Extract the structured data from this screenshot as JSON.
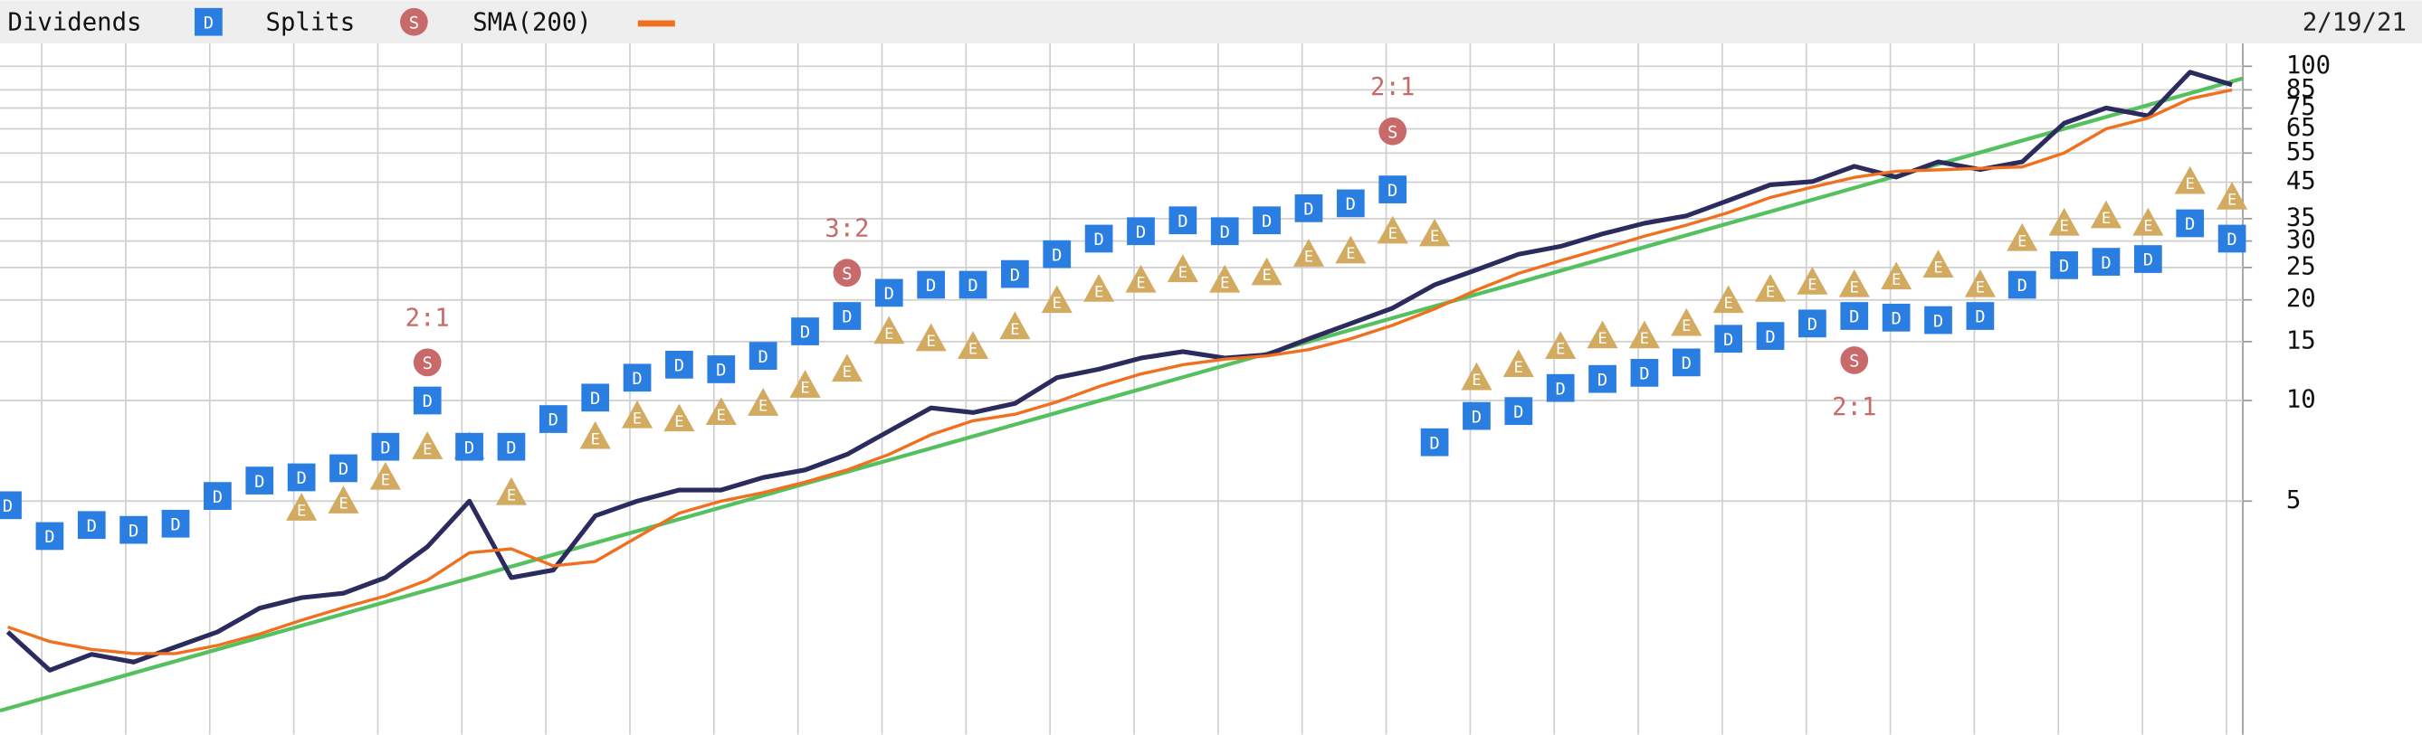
{
  "chart_data": {
    "type": "line",
    "date": "2/19/21",
    "log": true,
    "grid": true,
    "ylim": [
      1,
      117
    ],
    "yticks": [
      100,
      85,
      75,
      65,
      55,
      45,
      35,
      30,
      25,
      20,
      15,
      10,
      5
    ],
    "price": {
      "color": "#2b2b5e",
      "values": [
        2.03,
        1.56,
        1.74,
        1.65,
        1.83,
        2.03,
        2.39,
        2.57,
        2.65,
        2.95,
        3.65,
        5.0,
        2.95,
        3.11,
        4.52,
        5.0,
        5.4,
        5.4,
        5.88,
        6.2,
        6.9,
        8.1,
        9.5,
        9.2,
        9.8,
        11.7,
        12.4,
        13.4,
        14.0,
        13.4,
        13.7,
        15.3,
        17.0,
        18.9,
        22.2,
        24.6,
        27.4,
        28.9,
        31.5,
        33.9,
        35.7,
        39.7,
        44.2,
        45.2,
        50.2,
        46.6,
        51.8,
        49.1,
        51.8,
        67.5,
        75.0,
        71.1,
        96,
        88
      ]
    },
    "series": [
      {
        "name": "SMA(200)",
        "color": "#f07020",
        "values": [
          2.1,
          1.9,
          1.8,
          1.75,
          1.75,
          1.85,
          2.0,
          2.2,
          2.4,
          2.6,
          2.9,
          3.5,
          3.6,
          3.2,
          3.3,
          3.9,
          4.6,
          5.0,
          5.3,
          5.7,
          6.2,
          6.9,
          7.9,
          8.7,
          9.1,
          9.9,
          11.0,
          12.0,
          12.8,
          13.3,
          13.6,
          14.2,
          15.3,
          16.8,
          18.8,
          21.4,
          24.0,
          26.2,
          28.5,
          31.0,
          33.5,
          36.5,
          40.5,
          43.5,
          46.5,
          48.5,
          49.0,
          49.5,
          50.0,
          55.0,
          65.0,
          70.0,
          80.0,
          85.0
        ]
      }
    ],
    "dividends": {
      "name": "Dividends",
      "symbol": "D",
      "color": "#2a7de1",
      "values": [
        4.86,
        3.93,
        4.24,
        4.1,
        4.28,
        5.18,
        5.76,
        5.89,
        6.27,
        7.27,
        10,
        7.27,
        7.27,
        8.8,
        10.2,
        11.7,
        12.8,
        12.4,
        13.6,
        16.1,
        17.9,
        21.0,
        22.2,
        22.2,
        23.9,
        27.4,
        30.5,
        32.1,
        34.6,
        32.1,
        34.6,
        37.6,
        38.9,
        42.8,
        7.5,
        8.99,
        9.3,
        10.9,
        11.6,
        12.1,
        13.0,
        15.3,
        15.6,
        17.0,
        17.9,
        17.7,
        17.4,
        17.9,
        22.2,
        25.4,
        26.0,
        26.5,
        33.9,
        30.5
      ]
    },
    "earnings": {
      "symbol": "E",
      "color": "#d2aa60",
      "values": [
        null,
        null,
        null,
        null,
        null,
        null,
        null,
        4.76,
        5.0,
        5.89,
        7.27,
        7.27,
        5.3,
        null,
        7.8,
        9.0,
        8.8,
        9.2,
        9.8,
        11.1,
        12.4,
        16.1,
        15.3,
        14.5,
        16.6,
        19.9,
        21.5,
        22.9,
        24.6,
        22.9,
        24.1,
        27.4,
        28.0,
        32.1,
        31.5,
        11.7,
        12.8,
        14.5,
        15.6,
        15.6,
        17.0,
        19.9,
        21.5,
        22.6,
        22.2,
        23.4,
        25.4,
        22.2,
        30.5,
        33.9,
        35.7,
        33.9,
        45.2,
        40.6
      ]
    },
    "splits": {
      "name": "Splits",
      "symbol": "S",
      "color": "#c86a6a",
      "values": [
        null,
        null,
        null,
        null,
        null,
        null,
        null,
        null,
        null,
        null,
        13.0,
        null,
        null,
        null,
        null,
        null,
        null,
        null,
        null,
        null,
        24.1,
        null,
        null,
        null,
        null,
        null,
        null,
        null,
        null,
        null,
        null,
        null,
        null,
        63.9,
        null,
        null,
        null,
        null,
        null,
        null,
        null,
        null,
        null,
        null,
        13.2,
        null,
        null,
        null,
        null,
        null,
        null,
        null,
        null,
        null
      ],
      "labels": [
        null,
        null,
        null,
        null,
        null,
        null,
        null,
        null,
        null,
        null,
        "2:1",
        null,
        null,
        null,
        null,
        null,
        null,
        null,
        null,
        null,
        "3:2",
        null,
        null,
        null,
        null,
        null,
        null,
        null,
        null,
        null,
        null,
        null,
        null,
        "2:1",
        null,
        null,
        null,
        null,
        null,
        null,
        null,
        null,
        null,
        null,
        "2:1",
        null,
        null,
        null,
        null,
        null,
        null,
        null,
        null,
        null
      ]
    },
    "trend_line": {
      "color": "#55c060",
      "values": [
        1.18,
        92
      ]
    }
  }
}
